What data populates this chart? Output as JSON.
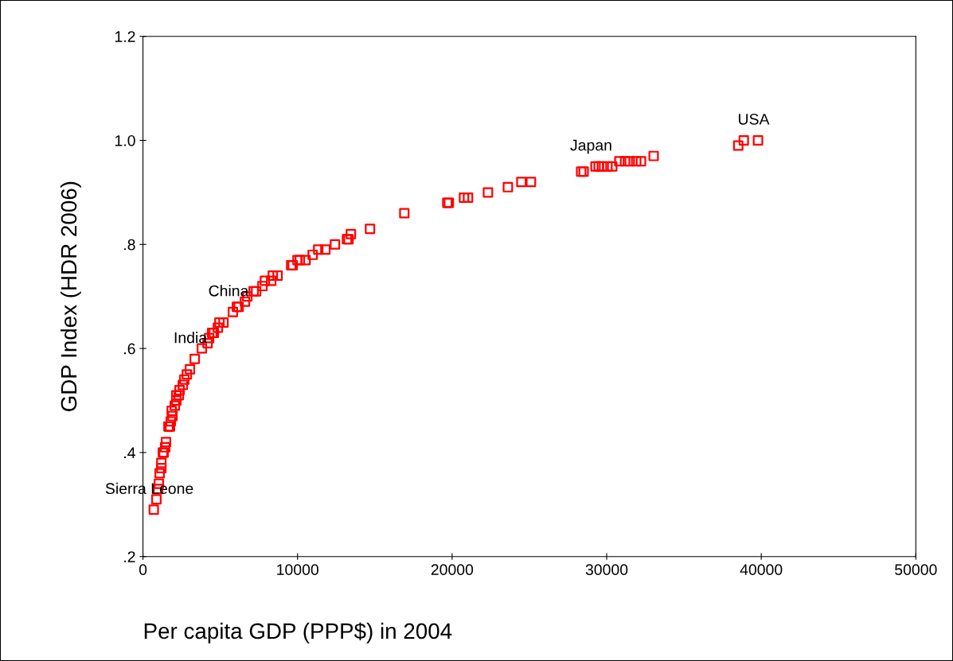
{
  "chart_data": {
    "type": "scatter",
    "xlabel": "Per capita GDP (PPP$) in 2004",
    "ylabel": "GDP Index (HDR 2006)",
    "x": [
      700,
      870,
      980,
      1030,
      1080,
      1190,
      1190,
      1290,
      1340,
      1440,
      1490,
      1650,
      1750,
      1800,
      1910,
      1860,
      2060,
      2160,
      2160,
      2320,
      2370,
      2580,
      2680,
      2840,
      3040,
      3350,
      3810,
      4180,
      4280,
      4480,
      4590,
      4850,
      4950,
      5210,
      5820,
      6080,
      6190,
      6600,
      6750,
      7160,
      7320,
      7730,
      7890,
      8300,
      8400,
      8710,
      9590,
      9690,
      10000,
      10150,
      10520,
      10980,
      11340,
      11800,
      12420,
      13200,
      13300,
      13450,
      14690,
      16910,
      19690,
      19790,
      20770,
      21030,
      22320,
      23610,
      24480,
      25100,
      28350,
      28510,
      29280,
      29480,
      29690,
      30050,
      30360,
      30820,
      31190,
      31490,
      31910,
      32220,
      33040,
      38510,
      38870,
      39790
    ],
    "series": [
      {
        "color": "#ff0000",
        "values": [
          0.29,
          0.31,
          0.33,
          0.34,
          0.36,
          0.37,
          0.38,
          0.4,
          0.4,
          0.41,
          0.42,
          0.45,
          0.45,
          0.46,
          0.47,
          0.48,
          0.49,
          0.5,
          0.51,
          0.51,
          0.52,
          0.53,
          0.54,
          0.55,
          0.56,
          0.58,
          0.6,
          0.61,
          0.62,
          0.63,
          0.63,
          0.64,
          0.65,
          0.65,
          0.67,
          0.68,
          0.68,
          0.69,
          0.7,
          0.71,
          0.71,
          0.72,
          0.73,
          0.73,
          0.74,
          0.74,
          0.76,
          0.76,
          0.77,
          0.77,
          0.77,
          0.78,
          0.79,
          0.79,
          0.8,
          0.81,
          0.81,
          0.82,
          0.83,
          0.86,
          0.88,
          0.88,
          0.89,
          0.89,
          0.9,
          0.91,
          0.92,
          0.92,
          0.94,
          0.94,
          0.95,
          0.95,
          0.95,
          0.95,
          0.95,
          0.96,
          0.96,
          0.96,
          0.96,
          0.96,
          0.97,
          0.99,
          1.0,
          1.0
        ]
      }
    ],
    "xlim": [
      0,
      50000
    ],
    "xticks": [
      0,
      10000,
      20000,
      30000,
      40000,
      50000
    ],
    "ylim": [
      0.2,
      1.2
    ],
    "yticks": [
      {
        "value": 0.2,
        "label": ".2"
      },
      {
        "value": 0.4,
        "label": ".4"
      },
      {
        "value": 0.6,
        "label": ".6"
      },
      {
        "value": 0.8,
        "label": ".8"
      },
      {
        "value": 1.0,
        "label": "1.0"
      },
      {
        "value": 1.2,
        "label": "1.2"
      }
    ],
    "marker": "square",
    "grid": false,
    "legend": false,
    "annotations": [
      {
        "text": "Sierra Leone",
        "x": 700,
        "y": 0.29
      },
      {
        "text": "India",
        "x": 3350,
        "y": 0.58
      },
      {
        "text": "China",
        "x": 5820,
        "y": 0.67
      },
      {
        "text": "Japan",
        "x": 29280,
        "y": 0.95
      },
      {
        "text": "USA",
        "x": 39790,
        "y": 1.0
      }
    ]
  }
}
